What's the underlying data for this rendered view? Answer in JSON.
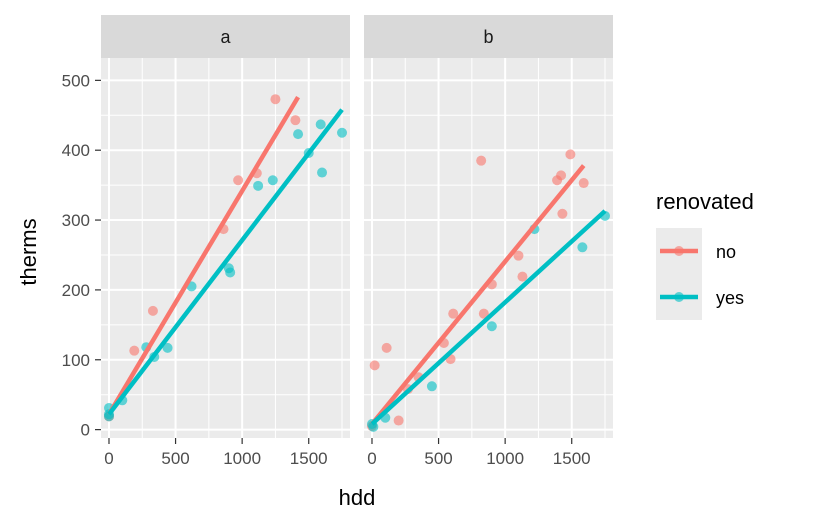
{
  "chart_data": {
    "type": "scatter",
    "xlabel": "hdd",
    "ylabel": "therms",
    "xlim": [
      -60,
      1810
    ],
    "ylim": [
      -12,
      532
    ],
    "x_ticks": [
      0,
      500,
      1000,
      1500
    ],
    "x_tick_labels": [
      "0",
      "500",
      "1000",
      "1500"
    ],
    "y_ticks": [
      0,
      100,
      200,
      300,
      400,
      500
    ],
    "y_tick_labels": [
      "0",
      "100",
      "200",
      "300",
      "400",
      "500"
    ],
    "legend": {
      "title": "renovated",
      "entries": [
        {
          "label": "no",
          "color": "#F8766D"
        },
        {
          "label": "yes",
          "color": "#00BFC4"
        }
      ]
    },
    "facets": [
      {
        "label": "a",
        "series": [
          {
            "name": "no",
            "color": "#F8766D",
            "points": [
              [
                0,
                19
              ],
              [
                190,
                113
              ],
              [
                330,
                170
              ],
              [
                860,
                287
              ],
              [
                970,
                357
              ],
              [
                1110,
                367
              ],
              [
                1250,
                473
              ],
              [
                1400,
                443
              ]
            ],
            "fit": [
              [
                0,
                22
              ],
              [
                1420,
                476
              ]
            ]
          },
          {
            "name": "yes",
            "color": "#00BFC4",
            "points": [
              [
                0,
                31
              ],
              [
                0,
                22
              ],
              [
                0,
                19
              ],
              [
                100,
                42
              ],
              [
                280,
                118
              ],
              [
                340,
                104
              ],
              [
                440,
                117
              ],
              [
                620,
                205
              ],
              [
                900,
                231
              ],
              [
                910,
                225
              ],
              [
                1120,
                349
              ],
              [
                1230,
                357
              ],
              [
                1420,
                423
              ],
              [
                1500,
                396
              ],
              [
                1590,
                437
              ],
              [
                1600,
                368
              ],
              [
                1750,
                425
              ]
            ],
            "fit": [
              [
                0,
                22
              ],
              [
                1750,
                458
              ]
            ]
          }
        ]
      },
      {
        "label": "b",
        "series": [
          {
            "name": "no",
            "color": "#F8766D",
            "points": [
              [
                0,
                5
              ],
              [
                20,
                92
              ],
              [
                110,
                117
              ],
              [
                200,
                13
              ],
              [
                270,
                58
              ],
              [
                350,
                75
              ],
              [
                540,
                124
              ],
              [
                590,
                101
              ],
              [
                610,
                166
              ],
              [
                820,
                385
              ],
              [
                840,
                166
              ],
              [
                900,
                208
              ],
              [
                1100,
                249
              ],
              [
                1130,
                219
              ],
              [
                1390,
                357
              ],
              [
                1420,
                364
              ],
              [
                1430,
                309
              ],
              [
                1490,
                394
              ],
              [
                1590,
                353
              ]
            ],
            "fit": [
              [
                0,
                8
              ],
              [
                1590,
                378
              ]
            ]
          },
          {
            "name": "yes",
            "color": "#00BFC4",
            "points": [
              [
                0,
                8
              ],
              [
                10,
                4
              ],
              [
                100,
                17
              ],
              [
                450,
                62
              ],
              [
                900,
                148
              ],
              [
                1220,
                287
              ],
              [
                1580,
                261
              ],
              [
                1750,
                306
              ]
            ],
            "fit": [
              [
                0,
                8
              ],
              [
                1750,
                313
              ]
            ]
          }
        ]
      }
    ]
  }
}
